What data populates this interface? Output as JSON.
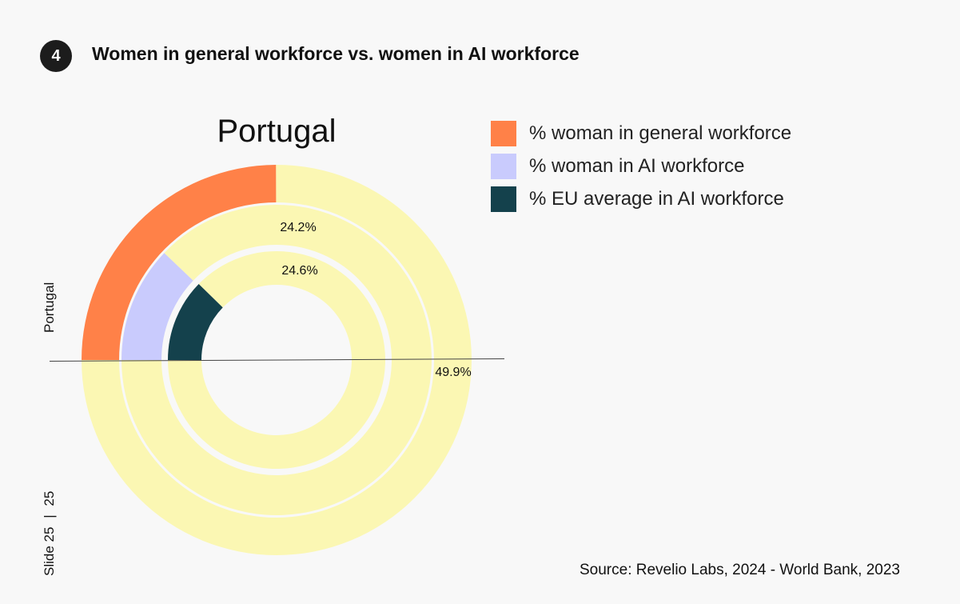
{
  "header": {
    "badge_number": "4",
    "title": "Women in general workforce vs. women in AI workforce"
  },
  "side": {
    "country_label": "Portugal",
    "slide_label": "Slide",
    "slide_current": "25",
    "slide_total": "25"
  },
  "source": "Source: Revelio Labs, 2024 - World Bank, 2023",
  "colors": {
    "general_workforce": "#ff8148",
    "ai_workforce": "#c9cbfd",
    "eu_average": "#14414c",
    "remainder": "#fbf7b3",
    "background": "#f8f8f8"
  },
  "chart_data": {
    "type": "pie",
    "subtype": "nested-donut",
    "title": "Portugal",
    "country": "Portugal",
    "full_scale_percent": 200,
    "series": [
      {
        "name": "% woman in general workforce",
        "value": 49.9,
        "label": "49.9%",
        "color": "#ff8148"
      },
      {
        "name": "% woman in AI workforce",
        "value": 24.2,
        "label": "24.2%",
        "color": "#c9cbfd"
      },
      {
        "name": "% EU average in AI workforce",
        "value": 24.6,
        "label": "24.6%",
        "color": "#14414c"
      }
    ],
    "remainder_color": "#fbf7b3",
    "legend_position": "top-right"
  }
}
